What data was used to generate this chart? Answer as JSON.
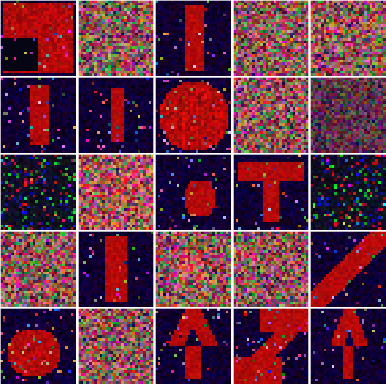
{
  "grid_rows": 5,
  "grid_cols": 5,
  "figsize": [
    3.86,
    3.84
  ],
  "dpi": 100,
  "noise_seed": 42,
  "cell_size": 28,
  "border_color": "#ffffff",
  "border_width": 0.5
}
